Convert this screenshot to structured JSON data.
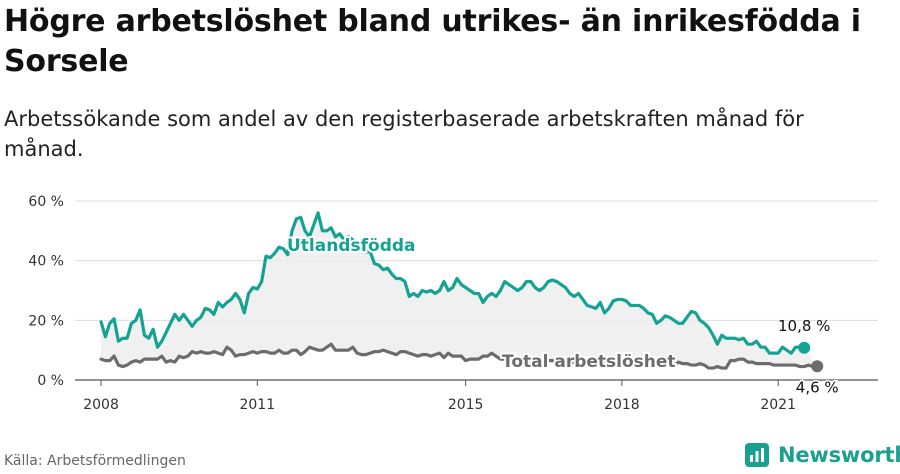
{
  "header": {
    "title": "Högre arbetslöshet bland utrikes- än inrikesfödda i Sorsele",
    "subtitle": "Arbetssökande som andel av den registerbaserade arbetskraften månad för månad."
  },
  "footer": {
    "source": "Källa: Arbetsförmedlingen",
    "brand": "Newsworthy"
  },
  "colors": {
    "utlandsfodda": "#14a292",
    "total": "#6c6c6e",
    "band": "#ececec",
    "grid": "#dddddd",
    "brand": "#19a08f"
  },
  "chart_data": {
    "type": "line",
    "title": "Högre arbetslöshet bland utrikes- än inrikesfödda i Sorsele",
    "x_ticks": [
      "2008",
      "2011",
      "2015",
      "2018",
      "2021"
    ],
    "y_ticks": [
      "0 %",
      "20 %",
      "40 %",
      "60 %"
    ],
    "ylim": [
      0,
      60
    ],
    "xlim": [
      "2007-07",
      "2022-12"
    ],
    "x_start": "2008-01",
    "frequency": "monthly",
    "shaded_between_series": true,
    "grid": "horizontal",
    "series": [
      {
        "name": "Utlandsfödda",
        "end_label": "10,8 %",
        "values": [
          19.5,
          14.5,
          19,
          20.5,
          13,
          14,
          14,
          19,
          20,
          23.5,
          15,
          14,
          17,
          11,
          13,
          16,
          19,
          22,
          20,
          22,
          20,
          18,
          20,
          21,
          24,
          23.5,
          22,
          26,
          24.5,
          26,
          27,
          29,
          27,
          22.5,
          29,
          31,
          30.5,
          33,
          41.5,
          41,
          42.5,
          44.5,
          44,
          42,
          50,
          54,
          54.5,
          50,
          48,
          52,
          56,
          50,
          50,
          51,
          48,
          49,
          47,
          48,
          47,
          44,
          44,
          43,
          43,
          39,
          38.5,
          37,
          37.5,
          35.5,
          34,
          34,
          33,
          28,
          29,
          28,
          30,
          29.5,
          30,
          29,
          30,
          33,
          30,
          31,
          34,
          32,
          31,
          30,
          29,
          29,
          26,
          28,
          29,
          28,
          30,
          33,
          32,
          31,
          30,
          31,
          33,
          33,
          31,
          30,
          31,
          33,
          33.5,
          33,
          32,
          31,
          29,
          28,
          29,
          27,
          25,
          24.5,
          24,
          26,
          22.5,
          24,
          26.5,
          27,
          27,
          26.5,
          25,
          25,
          25,
          24,
          22.5,
          22,
          19,
          20,
          21.5,
          21,
          20,
          19,
          19,
          21,
          23,
          22.5,
          20,
          19,
          17.5,
          15,
          12,
          15,
          14,
          14,
          14,
          13.5,
          14,
          12,
          12,
          13,
          11,
          11,
          9,
          9,
          9,
          11,
          10,
          9,
          11,
          11,
          10.8
        ]
      },
      {
        "name": "Total arbetslöshet",
        "end_label": "4,6 %",
        "values": [
          7,
          6.5,
          6.5,
          8,
          5,
          4.5,
          5,
          6,
          6.5,
          6,
          7,
          7,
          7,
          7,
          8,
          6,
          6.5,
          6,
          8,
          7.5,
          8,
          9.5,
          9,
          9.5,
          9,
          9,
          9.5,
          9,
          8.5,
          11,
          10,
          8,
          8.5,
          8.5,
          9,
          9.5,
          9,
          9.5,
          9.5,
          9,
          9,
          10,
          9,
          9,
          10,
          10,
          8.5,
          9.5,
          11,
          10.5,
          10,
          10,
          11,
          12,
          10,
          10,
          10,
          10,
          11,
          9,
          8.5,
          8.5,
          9,
          9.5,
          9.5,
          10,
          9.5,
          9,
          8.5,
          9.5,
          9.5,
          9,
          8.5,
          8,
          8.5,
          8.5,
          8,
          8.5,
          9,
          7.5,
          9,
          8,
          8,
          8,
          6.5,
          7,
          7,
          7,
          8,
          8,
          9,
          8,
          7,
          7,
          7,
          6,
          6,
          6,
          6.5,
          6,
          6,
          6,
          6,
          6.5,
          6.5,
          6,
          6,
          6,
          6,
          6,
          6.5,
          6,
          5,
          5,
          5,
          5,
          5.5,
          5,
          5,
          5,
          5.5,
          5,
          5,
          5,
          5,
          5.5,
          5,
          5,
          5,
          5,
          5,
          5,
          5,
          6,
          5.5,
          5.5,
          5,
          5,
          5.5,
          5,
          4,
          4,
          4.5,
          4,
          4,
          6.5,
          6.5,
          7,
          7,
          6,
          6,
          5.5,
          5.5,
          5.5,
          5.5,
          5,
          5,
          5,
          5,
          5,
          5,
          4.5,
          4.5,
          5,
          4.5,
          4.6
        ]
      }
    ]
  }
}
